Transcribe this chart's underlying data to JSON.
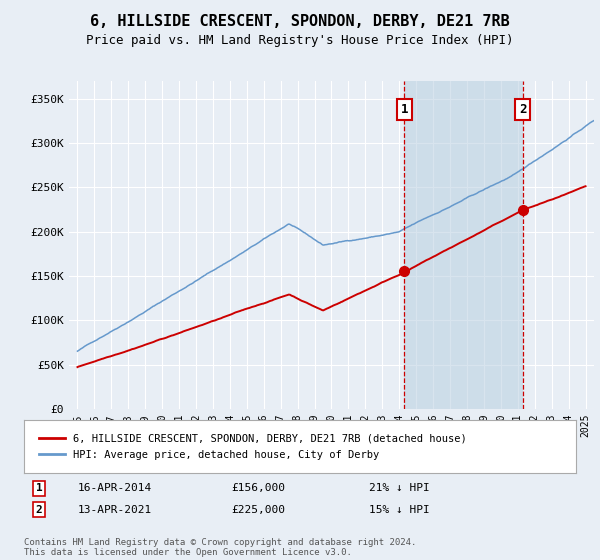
{
  "title": "6, HILLSIDE CRESCENT, SPONDON, DERBY, DE21 7RB",
  "subtitle": "Price paid vs. HM Land Registry's House Price Index (HPI)",
  "title_fontsize": 11,
  "subtitle_fontsize": 9,
  "background_color": "#e8eef5",
  "plot_bg_color": "#e8eef5",
  "grid_color": "#ffffff",
  "red_line_color": "#cc0000",
  "blue_line_color": "#6699cc",
  "transaction1": {
    "date": "16-APR-2014",
    "price": 156000,
    "price_str": "£156,000",
    "label": "1",
    "pct": "21% ↓ HPI",
    "year": 2014.29
  },
  "transaction2": {
    "date": "13-APR-2021",
    "price": 225000,
    "price_str": "£225,000",
    "label": "2",
    "pct": "15% ↓ HPI",
    "year": 2021.29
  },
  "legend_label_red": "6, HILLSIDE CRESCENT, SPONDON, DERBY, DE21 7RB (detached house)",
  "legend_label_blue": "HPI: Average price, detached house, City of Derby",
  "footer": "Contains HM Land Registry data © Crown copyright and database right 2024.\nThis data is licensed under the Open Government Licence v3.0.",
  "ylim": [
    0,
    370000
  ],
  "xlim_start": 1994.5,
  "xlim_end": 2025.5,
  "yticks": [
    0,
    50000,
    100000,
    150000,
    200000,
    250000,
    300000,
    350000
  ],
  "ytick_labels": [
    "£0",
    "£50K",
    "£100K",
    "£150K",
    "£200K",
    "£250K",
    "£300K",
    "£350K"
  ],
  "xticks": [
    1995,
    1996,
    1997,
    1998,
    1999,
    2000,
    2001,
    2002,
    2003,
    2004,
    2005,
    2006,
    2007,
    2008,
    2009,
    2010,
    2011,
    2012,
    2013,
    2014,
    2015,
    2016,
    2017,
    2018,
    2019,
    2020,
    2021,
    2022,
    2023,
    2024,
    2025
  ]
}
